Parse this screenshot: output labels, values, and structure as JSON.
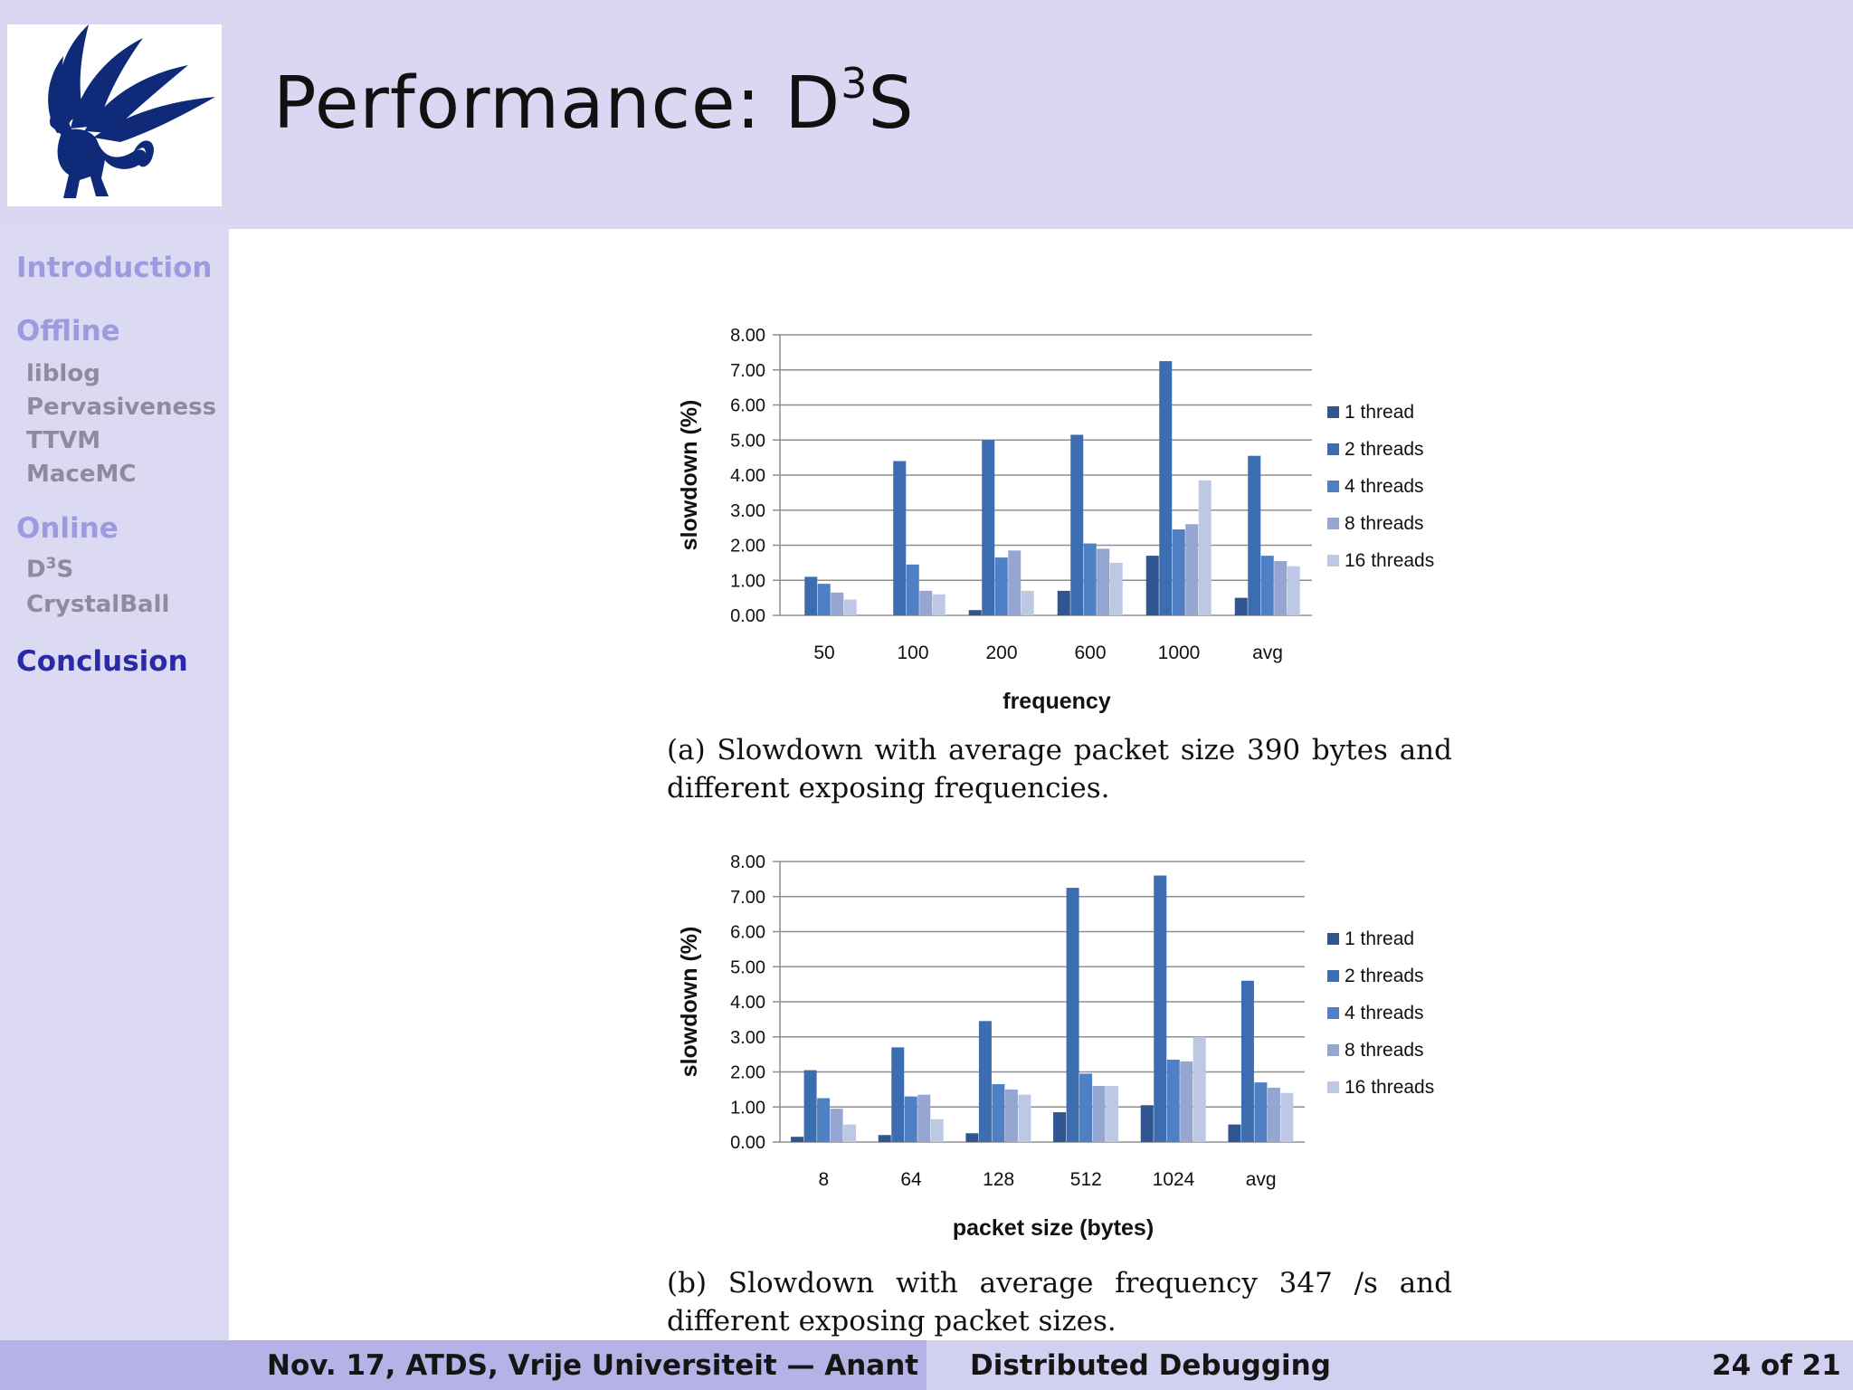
{
  "slide": {
    "title_base": "Performance:  D",
    "title_sup": "3",
    "title_tail": "S"
  },
  "sidebar": {
    "sections": [
      {
        "label": "Introduction",
        "active": false,
        "items": []
      },
      {
        "label": "Offline",
        "active": false,
        "items": [
          {
            "label": "liblog"
          },
          {
            "label": "Pervasiveness"
          },
          {
            "label": "TTVM"
          },
          {
            "label": "MaceMC"
          }
        ]
      },
      {
        "label": "Online",
        "active": false,
        "items": [
          {
            "label_base": "D",
            "label_sup": "3",
            "label_tail": "S"
          },
          {
            "label": "CrystalBall"
          }
        ]
      },
      {
        "label": "Conclusion",
        "active": true,
        "items": []
      }
    ]
  },
  "footer": {
    "left": "Nov. 17, ATDS, Vrije Universiteit — Anant",
    "center": "Distributed Debugging",
    "right": "24 of 21"
  },
  "captions": {
    "a": "(a) Slowdown with average packet size 390 bytes and different exposing frequencies.",
    "b": "(b) Slowdown with average frequency 347 /s and different exposing packet sizes."
  },
  "colors": {
    "series": [
      "#2f5690",
      "#3c6db0",
      "#4f7fc5",
      "#95a6d2",
      "#bcc8e4"
    ],
    "header_bg": "#d9d7f2",
    "active_nav": "#2a2aa8"
  },
  "chart_data": [
    {
      "type": "bar",
      "xlabel": "frequency",
      "ylabel": "slowdown (%)",
      "ylim": [
        0,
        8
      ],
      "yticks": [
        "0.00",
        "1.00",
        "2.00",
        "3.00",
        "4.00",
        "5.00",
        "6.00",
        "7.00",
        "8.00"
      ],
      "grid": true,
      "legend": "right",
      "categories": [
        "50",
        "100",
        "200",
        "600",
        "1000",
        "avg"
      ],
      "series": [
        {
          "name": "1 thread",
          "values": [
            0.0,
            0.0,
            0.15,
            0.7,
            1.7,
            0.5
          ]
        },
        {
          "name": "2 threads",
          "values": [
            1.1,
            4.4,
            5.0,
            5.15,
            7.25,
            4.55
          ]
        },
        {
          "name": "4 threads",
          "values": [
            0.9,
            1.45,
            1.65,
            2.05,
            2.45,
            1.7
          ]
        },
        {
          "name": "8 threads",
          "values": [
            0.65,
            0.7,
            1.85,
            1.9,
            2.6,
            1.55
          ]
        },
        {
          "name": "16 threads",
          "values": [
            0.45,
            0.6,
            0.7,
            1.5,
            3.85,
            1.4
          ]
        }
      ]
    },
    {
      "type": "bar",
      "xlabel": "packet size (bytes)",
      "ylabel": "slowdown (%)",
      "ylim": [
        0,
        8
      ],
      "yticks": [
        "0.00",
        "1.00",
        "2.00",
        "3.00",
        "4.00",
        "5.00",
        "6.00",
        "7.00",
        "8.00"
      ],
      "grid": true,
      "legend": "right",
      "categories": [
        "8",
        "64",
        "128",
        "512",
        "1024",
        "avg"
      ],
      "series": [
        {
          "name": "1 thread",
          "values": [
            0.15,
            0.2,
            0.25,
            0.85,
            1.05,
            0.5
          ]
        },
        {
          "name": "2 threads",
          "values": [
            2.05,
            2.7,
            3.45,
            7.25,
            7.6,
            4.6
          ]
        },
        {
          "name": "4 threads",
          "values": [
            1.25,
            1.3,
            1.65,
            1.95,
            2.35,
            1.7
          ]
        },
        {
          "name": "8 threads",
          "values": [
            0.95,
            1.35,
            1.5,
            1.6,
            2.3,
            1.55
          ]
        },
        {
          "name": "16 threads",
          "values": [
            0.5,
            0.65,
            1.35,
            1.6,
            3.0,
            1.4
          ]
        }
      ]
    }
  ]
}
